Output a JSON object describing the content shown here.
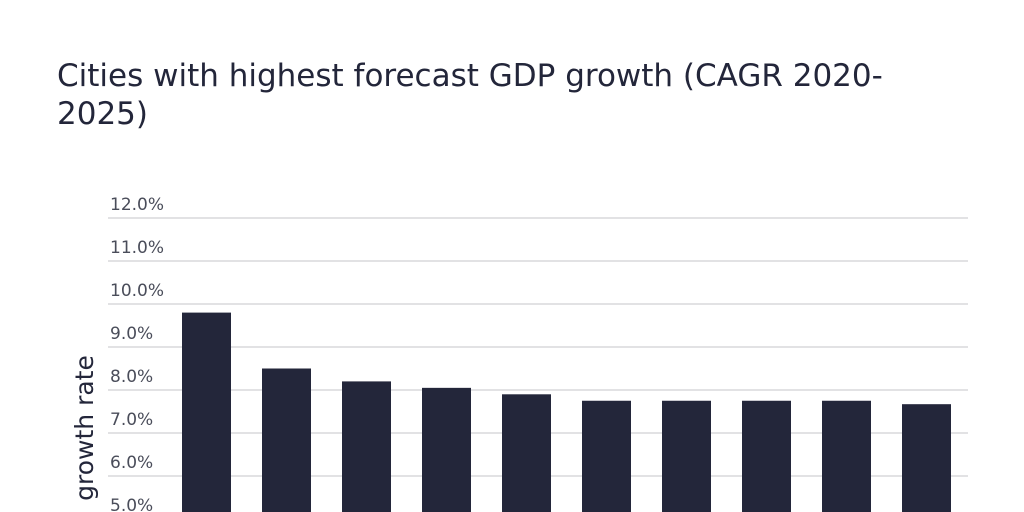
{
  "chart_data": {
    "type": "bar",
    "title_line1": "Cities with highest forecast GDP growth (CAGR 2020-",
    "title_line2": "2025)",
    "ylabel": "growth rate",
    "xlabel": "",
    "categories": [
      "",
      "",
      "",
      "",
      "",
      "",
      "",
      "",
      "",
      ""
    ],
    "values": [
      9.8,
      8.5,
      8.2,
      8.05,
      7.9,
      7.75,
      7.75,
      7.75,
      7.75,
      7.67
    ],
    "ylim": [
      5.0,
      12.0
    ],
    "yticks": [
      {
        "value": 12,
        "label": "12.0%"
      },
      {
        "value": 11,
        "label": "11.0%"
      },
      {
        "value": 10,
        "label": "10.0%"
      },
      {
        "value": 9,
        "label": "9.0%"
      },
      {
        "value": 8,
        "label": "8.0%"
      },
      {
        "value": 7,
        "label": "7.0%"
      },
      {
        "value": 6,
        "label": "6.0%"
      },
      {
        "value": 5,
        "label": "5.0%"
      }
    ],
    "grid": true,
    "bar_color": "#23263a",
    "grid_color": "#d9d9dc"
  }
}
